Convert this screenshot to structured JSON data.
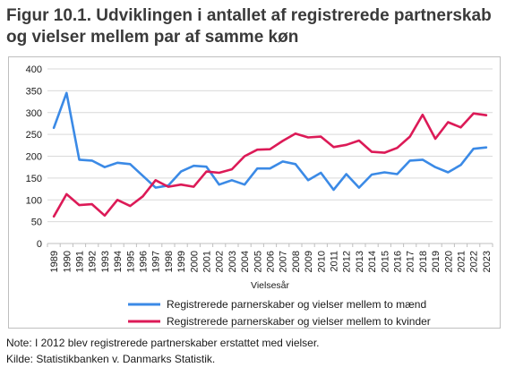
{
  "title": "Figur 10.1. Udviklingen i antallet af registrerede partnerskab og vielser mellem par af samme køn",
  "note": "Note: I 2012 blev registrerede partnerskaber erstattet med vielser.",
  "source": "Kilde: Statistikbanken v. Danmarks Statistik.",
  "colors": {
    "series_men": "#3b8ae6",
    "series_women": "#dc1a57",
    "grid": "#d9d9d9",
    "axis": "#bfbfbf"
  },
  "chart_data": {
    "type": "line",
    "xlabel": "Vielsesår",
    "ylabel": "",
    "ylim": [
      0,
      400
    ],
    "yticks": [
      0,
      50,
      100,
      150,
      200,
      250,
      300,
      350,
      400
    ],
    "grid": true,
    "legend_position": "bottom",
    "x": [
      "1989",
      "1990",
      "1991",
      "1992",
      "1993",
      "1994",
      "1995",
      "1996",
      "1997",
      "1998",
      "1999",
      "2000",
      "2001",
      "2002",
      "2003",
      "2004",
      "2005",
      "2006",
      "2007",
      "2008",
      "2009",
      "2010",
      "2011",
      "2012",
      "2013",
      "2014",
      "2015",
      "2016",
      "2017",
      "2018",
      "2019",
      "2020",
      "2021",
      "2022",
      "2023"
    ],
    "series": [
      {
        "name": "Registrerede parnerskaber og vielser mellem to mænd",
        "color": "#3b8ae6",
        "values": [
          265,
          345,
          192,
          190,
          175,
          185,
          182,
          155,
          128,
          133,
          165,
          178,
          176,
          135,
          145,
          135,
          172,
          172,
          188,
          182,
          145,
          162,
          123,
          159,
          128,
          158,
          163,
          159,
          190,
          192,
          175,
          163,
          180,
          217,
          220
        ]
      },
      {
        "name": "Registrerede parnerskaber og vielser mellem to kvinder",
        "color": "#dc1a57",
        "values": [
          62,
          113,
          88,
          90,
          64,
          100,
          86,
          108,
          145,
          130,
          135,
          130,
          165,
          162,
          170,
          200,
          215,
          216,
          235,
          252,
          243,
          245,
          221,
          226,
          236,
          210,
          208,
          219,
          245,
          295,
          240,
          278,
          266,
          298,
          294
        ]
      }
    ]
  }
}
